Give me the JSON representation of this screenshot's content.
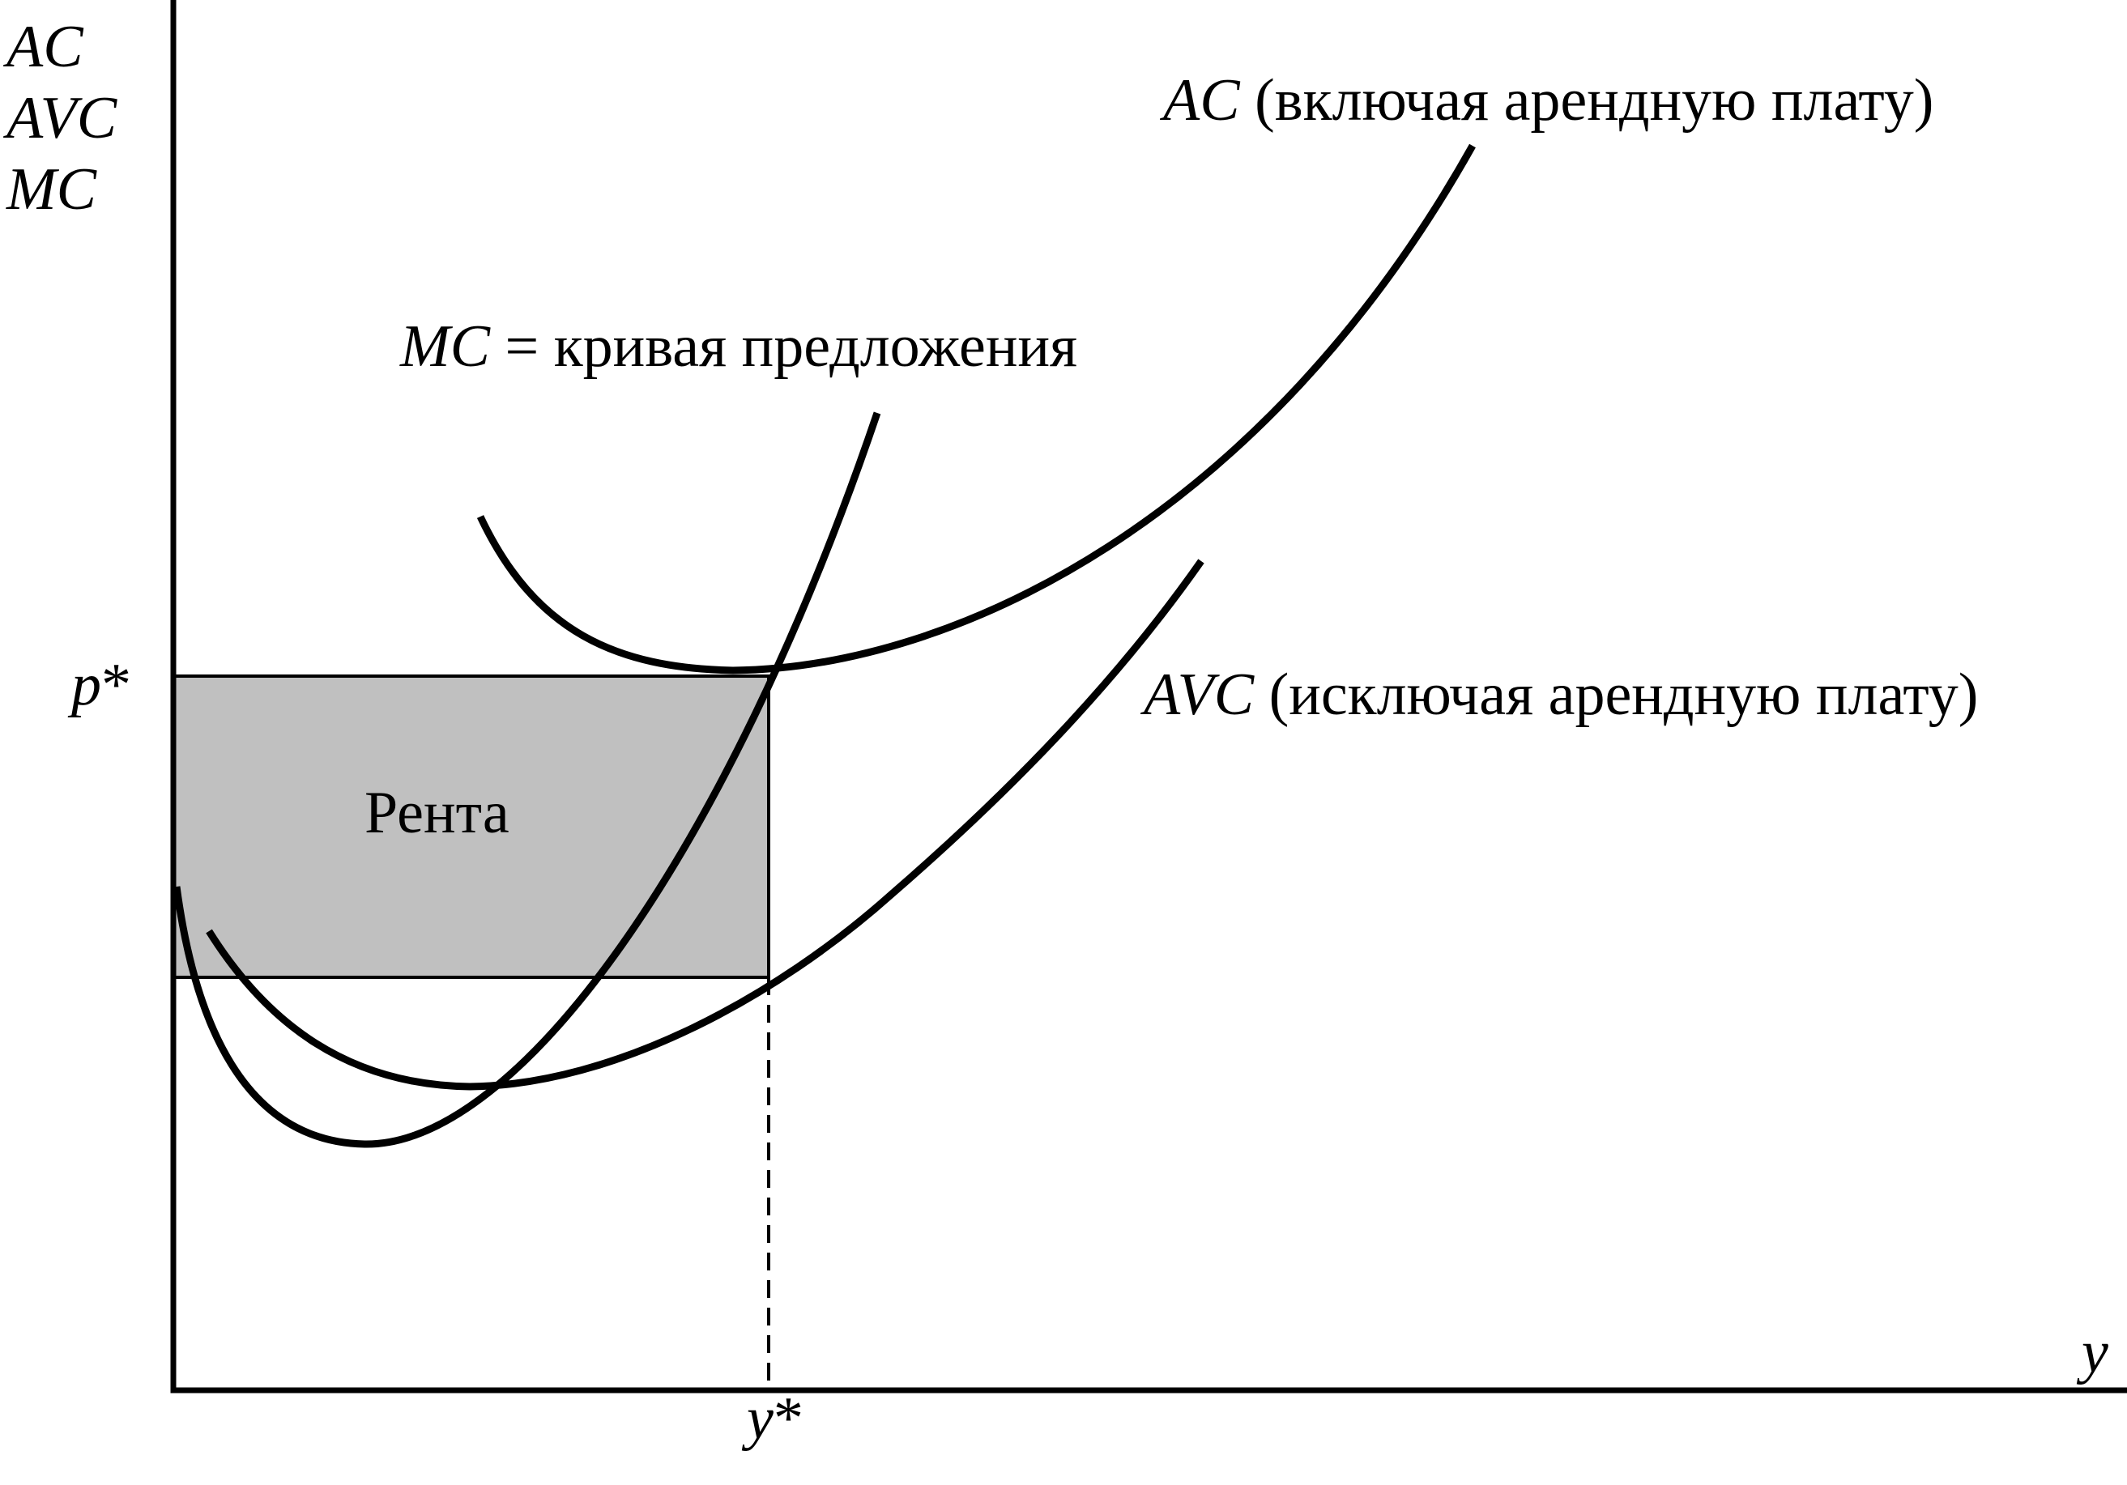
{
  "axes": {
    "y_axis_labels": [
      "AC",
      "AVC",
      "MC"
    ],
    "x_axis_label": "y",
    "price_label": "p",
    "price_star": "*",
    "quantity_label": "y",
    "quantity_star": "*"
  },
  "curves": {
    "ac": {
      "name": "AC",
      "note": " (включая арендную плату)"
    },
    "mc": {
      "name": "MC",
      "note": " = кривая предложения"
    },
    "avc": {
      "name": "AVC",
      "note": " (исключая арендную плату)"
    }
  },
  "rent_area": {
    "label": "Рента",
    "fill": "#c0c0c0"
  },
  "colors": {
    "line": "#000000",
    "background": "#ffffff"
  }
}
